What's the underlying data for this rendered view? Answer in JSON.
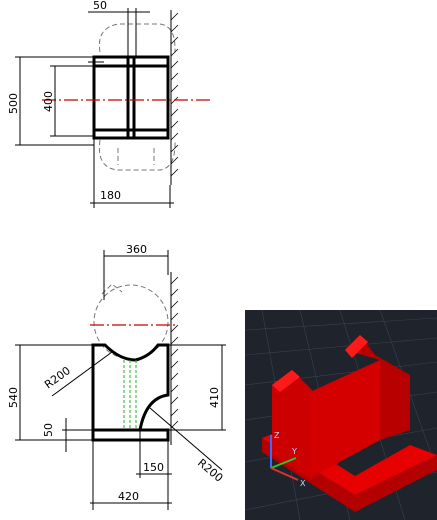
{
  "top_view": {
    "dims": {
      "width_top": "50",
      "height_outer": "500",
      "height_inner": "400",
      "width_bottom": "180"
    }
  },
  "front_view": {
    "dims": {
      "width_top": "360",
      "height_left": "540",
      "height_right": "410",
      "radius_left": "R200",
      "radius_right": "R200",
      "thickness_left": "50",
      "width_step": "150",
      "width_bottom": "420"
    }
  },
  "viewport_3d": {
    "background": "#1f232b",
    "model_color": "#e00000",
    "axis": {
      "x": "X",
      "y": "Y",
      "z": "Z"
    }
  },
  "colors": {
    "center_line": "#cc0000",
    "hidden_line": "#1db41d",
    "ghost_line": "#777777"
  }
}
